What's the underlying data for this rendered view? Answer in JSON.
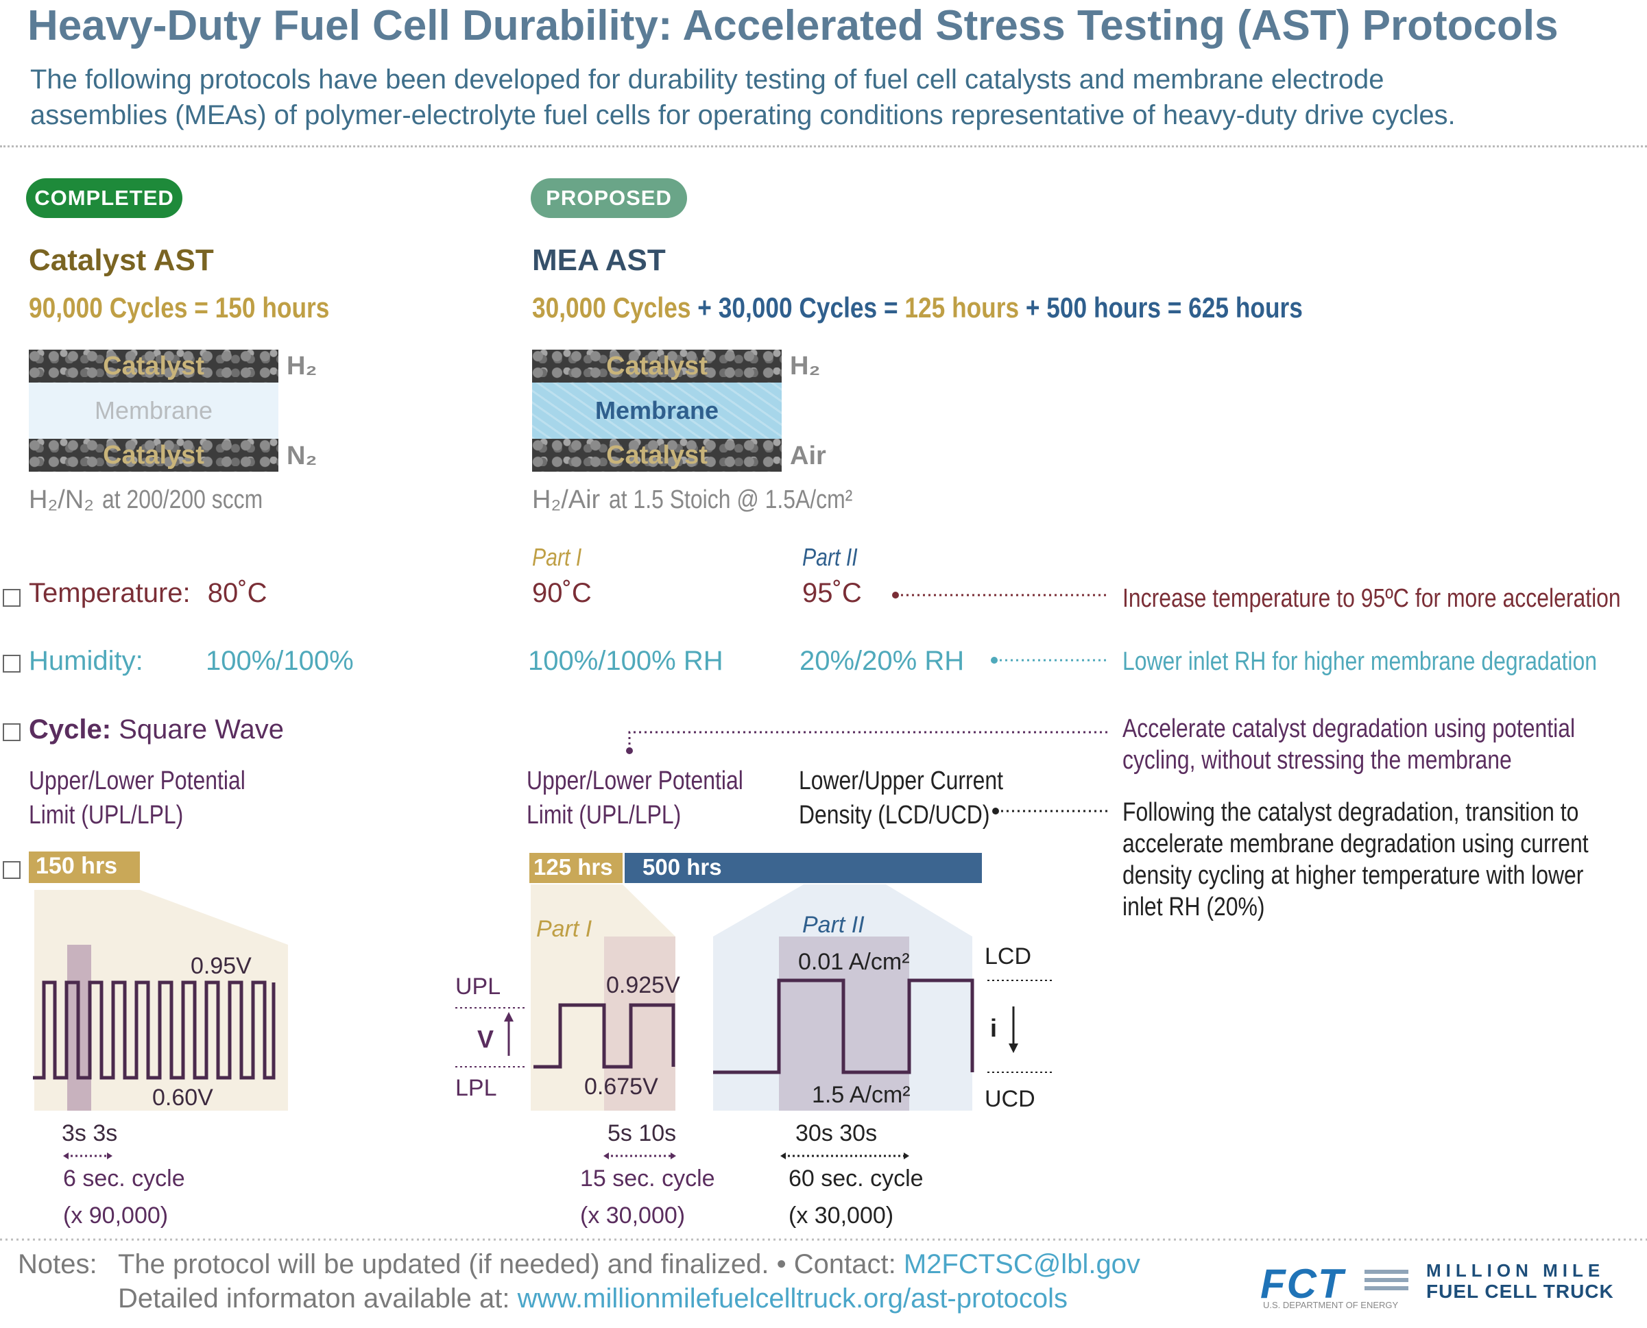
{
  "header": {
    "title": "Heavy-Duty Fuel Cell Durability: Accelerated Stress Testing (AST) Protocols",
    "subtitle_line1": "The following protocols have been developed for durability testing of fuel cell catalysts and membrane electrode",
    "subtitle_line2": "assemblies (MEAs) of polymer-electrolyte fuel cells for operating conditions representative of heavy-duty drive cycles."
  },
  "completed": {
    "badge": "COMPLETED",
    "title": "Catalyst AST",
    "cycles": "90,000 Cycles = 150 hours",
    "layers": {
      "top": "Catalyst",
      "middle": "Membrane",
      "bottom": "Catalyst"
    },
    "gas_top": "H₂",
    "gas_bottom": "N₂",
    "flow_gas": "H₂/N₂",
    "flow_rate": "at 200/200 sccm",
    "temperature_label": "Temperature:",
    "temperature_value": "80˚C",
    "humidity_label": "Humidity:",
    "humidity_value": "100%/100%",
    "cycle_label": "Cycle:",
    "cycle_value": "Square Wave",
    "limit_line1": "Upper/Lower Potential",
    "limit_line2": "Limit (UPL/LPL)",
    "duration": "150 hrs",
    "upper_v": "0.95V",
    "lower_v": "0.60V",
    "timing": "3s 3s",
    "cycle_sec": "6 sec. cycle",
    "cycle_count": "(x 90,000)"
  },
  "proposed": {
    "badge": "PROPOSED",
    "title": "MEA AST",
    "cycles_a": "30,000 Cycles",
    "plus1": "+",
    "cycles_b": "30,000 Cycles",
    "eq1": "=",
    "hours_a": "125 hours",
    "plus2": "+",
    "hours_b": "500 hours",
    "eq2": "=",
    "hours_total": "625 hours",
    "layers": {
      "top": "Catalyst",
      "middle": "Membrane",
      "bottom": "Catalyst"
    },
    "gas_top": "H₂",
    "gas_bottom": "Air",
    "flow_gas": "H₂/Air",
    "flow_rate": "at 1.5 Stoich @ 1.5A/cm²",
    "part1": "Part I",
    "part2": "Part II",
    "temp_part1": "90˚C",
    "temp_part2": "95˚C",
    "hum_part1": "100%/100% RH",
    "hum_part2": "20%/20% RH",
    "limit_line1": "Upper/Lower Potential",
    "limit_line2": "Limit (UPL/LPL)",
    "current_line1": "Lower/Upper Current",
    "current_line2": "Density (LCD/UCD)",
    "duration_a": "125 hrs",
    "duration_b": "500 hrs",
    "upl": "UPL",
    "lpl": "LPL",
    "v_symbol": "V",
    "upper_v": "0.925V",
    "lower_v": "0.675V",
    "timing1": "5s  10s",
    "cycle_sec1": "15 sec. cycle",
    "cycle_count1": "(x 30,000)",
    "lcd": "LCD",
    "ucd": "UCD",
    "i_symbol": "i",
    "lcd_value": "0.01 A/cm²",
    "ucd_value": "1.5 A/cm²",
    "timing2": "30s      30s",
    "cycle_sec2": "60 sec. cycle",
    "cycle_count2": "(x 30,000)"
  },
  "annotations": {
    "temperature": "Increase temperature to 95ºC for more acceleration",
    "humidity": "Lower inlet RH for higher membrane degradation",
    "cycle_line1": "Accelerate catalyst degradation using potential",
    "cycle_line2": "cycling, without stressing the membrane",
    "current_line1": "Following the catalyst degradation, transition to",
    "current_line2": "accelerate membrane degradation using current",
    "current_line3": "density cycling at higher temperature with lower",
    "current_line4": "inlet RH (20%)"
  },
  "notes": {
    "label": "Notes:",
    "line1": "The protocol will be updated (if needed) and finalized. •  Contact:",
    "email": "M2FCTSC@lbl.gov",
    "line2": "Detailed informaton available at:",
    "url": "www.millionmilefuelcelltruck.org/ast-protocols"
  },
  "logo": {
    "mark": "FCT",
    "dept": "U.S. DEPARTMENT OF ENERGY",
    "line1": "MILLION MILE",
    "line2": "FUEL CELL TRUCK"
  },
  "colors": {
    "title": "#5b7c96",
    "completed": "#1e8a3a",
    "proposed": "#6aa588",
    "gold": "#bf9f45",
    "navy": "#2f5f8d",
    "maroon": "#7a2e36",
    "teal": "#4fa9bb",
    "purple": "#5a2d5e"
  }
}
